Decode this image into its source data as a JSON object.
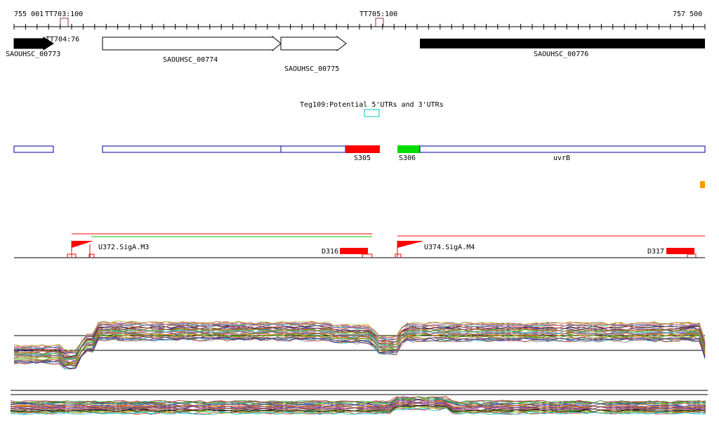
{
  "ruler": {
    "start_label": "755 001",
    "end_label": "757 500"
  },
  "terminators": [
    {
      "label": "TT703:100"
    },
    {
      "label": "TT704:76"
    },
    {
      "label": "TT705:100"
    }
  ],
  "genes": [
    {
      "label": "SAOUHSC_00773",
      "strand": "+",
      "fill": "#000000"
    },
    {
      "label": "SAOUHSC_00774",
      "strand": "+",
      "fill": "#ffffff"
    },
    {
      "label": "SAOUHSC_00775",
      "strand": "+",
      "fill": "#ffffff"
    },
    {
      "label": "SAOUHSC_00776",
      "strand": "+",
      "fill": "#000000"
    }
  ],
  "teg": {
    "label": "Teg109:Potential 5'UTRs and 3'UTRs",
    "color": "#00c8c8"
  },
  "segments": [
    {
      "label": "S305",
      "color": "#ff0000"
    },
    {
      "label": "S306",
      "color": "#00dd00"
    },
    {
      "label": "uvrB",
      "color": "#ffffff"
    }
  ],
  "features": {
    "outline_color": "#000099",
    "orange_marker_color": "#ff9900"
  },
  "transcripts": [
    {
      "label": "U372.SigA.M3"
    },
    {
      "label": "U374.SigA.M4"
    },
    {
      "label": "D316"
    },
    {
      "label": "D317"
    }
  ],
  "colors": {
    "transcript_line": "#ff0000",
    "transcript_line_alt": "#00c800"
  }
}
